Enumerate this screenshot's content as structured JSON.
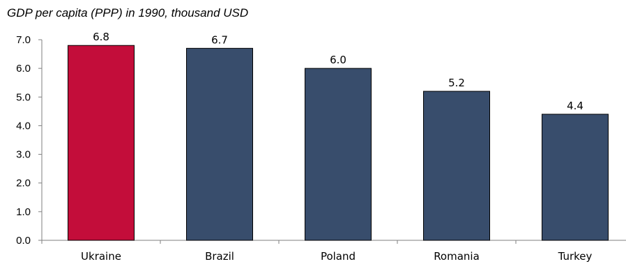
{
  "chart_data": {
    "type": "bar",
    "title": "GDP per capita (PPP) in 1990, thousand USD",
    "xlabel": "",
    "ylabel": "",
    "categories": [
      "Ukraine",
      "Brazil",
      "Poland",
      "Romania",
      "Turkey"
    ],
    "values": [
      6.8,
      6.7,
      6.0,
      5.2,
      4.4
    ],
    "data_labels": [
      "6.8",
      "6.7",
      "6.0",
      "5.2",
      "4.4"
    ],
    "yticks": [
      "0.0",
      "1.0",
      "2.0",
      "3.0",
      "4.0",
      "5.0",
      "6.0",
      "7.0"
    ],
    "ylim": [
      0,
      7
    ],
    "grid": false,
    "colors": {
      "highlight": "#c30d3a",
      "default": "#384d6c"
    },
    "highlight_index": 0
  }
}
